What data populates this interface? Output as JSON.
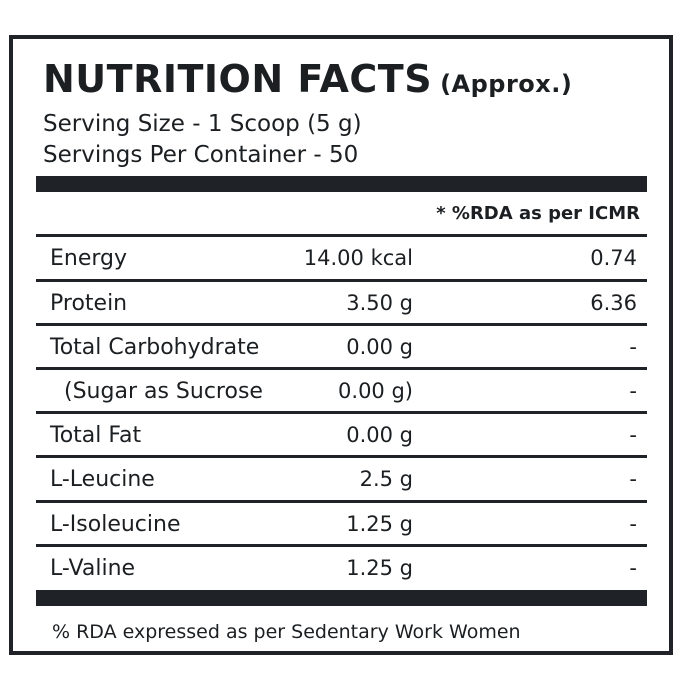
{
  "title": {
    "main": "NUTRITION FACTS",
    "suffix": "(Approx.)"
  },
  "serving": {
    "size": "Serving Size - 1 Scoop (5 g)",
    "per_container": "Servings Per Container - 50"
  },
  "rda_header": "* %RDA as per ICMR",
  "rows": [
    {
      "name": "Energy",
      "amount": "14.00 kcal",
      "rda": "0.74"
    },
    {
      "name": "Protein",
      "amount": "3.50 g",
      "rda": "6.36"
    },
    {
      "name": "Total Carbohydrate",
      "amount": "0.00 g",
      "rda": "-"
    },
    {
      "name": "(Sugar as Sucrose",
      "amount": "0.00 g)",
      "rda": "-"
    },
    {
      "name": "Total Fat",
      "amount": "0.00 g",
      "rda": "-"
    },
    {
      "name": "L-Leucine",
      "amount": "2.5 g",
      "rda": "-"
    },
    {
      "name": "L-Isoleucine",
      "amount": "1.25 g",
      "rda": "-"
    },
    {
      "name": "L-Valine",
      "amount": "1.25 g",
      "rda": "-"
    }
  ],
  "footer": "% RDA expressed as per Sedentary Work Women",
  "colors": {
    "ink": "#1f2327",
    "background": "#ffffff"
  }
}
